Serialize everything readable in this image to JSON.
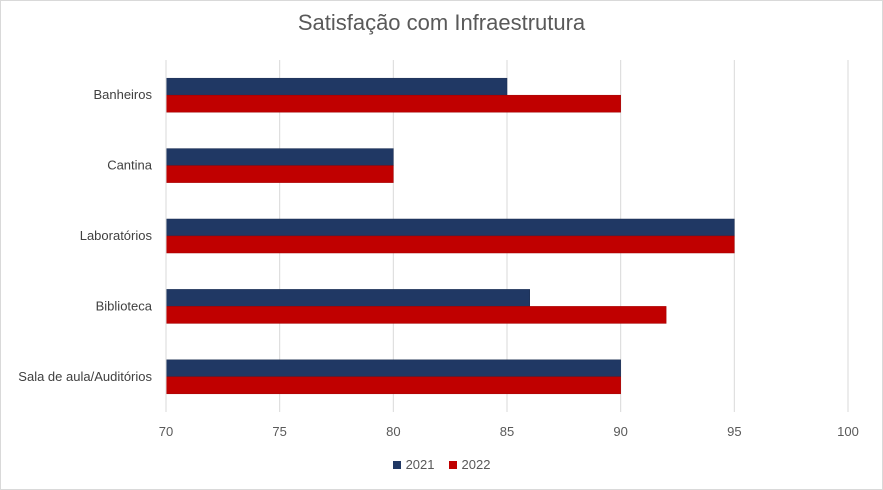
{
  "chart_data": {
    "type": "bar",
    "orientation": "horizontal",
    "title": "Satisfação com Infraestrutura",
    "categories": [
      "Banheiros",
      "Cantina",
      "Laboratórios",
      "Biblioteca",
      "Sala de aula/Auditórios"
    ],
    "series": [
      {
        "name": "2021",
        "values": [
          85,
          80,
          95,
          86,
          90
        ],
        "color": "#203864"
      },
      {
        "name": "2022",
        "values": [
          90,
          80,
          95,
          92,
          90
        ],
        "color": "#c00000"
      }
    ],
    "xlim": [
      70,
      100
    ],
    "xticks": [
      70,
      75,
      80,
      85,
      90,
      95,
      100
    ],
    "grid": true,
    "legend_position": "bottom"
  }
}
